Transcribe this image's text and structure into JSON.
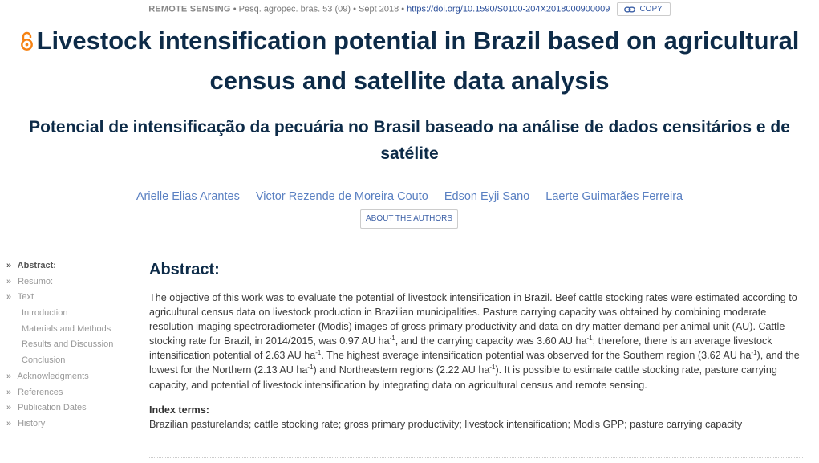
{
  "meta": {
    "section": "REMOTE SENSING",
    "journal": "Pesq. agropec. bras. 53 (09)",
    "date": "Sept 2018",
    "doi": "https://doi.org/10.1590/S0100-204X2018000900009",
    "copy_label": "COPY",
    "copy_icon": "link-icon",
    "link_color": "#2a4e9a"
  },
  "title": {
    "text": "Livestock intensification potential in Brazil based on agricultural census and satellite data analysis",
    "icon": "open-access-icon",
    "color": "#0d2b48",
    "oa_color": "#f68212"
  },
  "subtitle": "Potencial de intensificação da pecuária no Brasil baseado na análise de dados censitários e de satélite",
  "authors": [
    "Arielle Elias Arantes",
    "Victor Rezende de Moreira Couto",
    "Edson Eyji Sano",
    "Laerte Guimarães Ferreira"
  ],
  "about_authors_label": "ABOUT THE AUTHORS",
  "toc": [
    {
      "label": "Abstract:",
      "level": 1,
      "active": true
    },
    {
      "label": "Resumo:",
      "level": 1,
      "active": false
    },
    {
      "label": "Text",
      "level": 1,
      "active": false
    },
    {
      "label": "Introduction",
      "level": 2,
      "active": false
    },
    {
      "label": "Materials and Methods",
      "level": 2,
      "active": false
    },
    {
      "label": "Results and Discussion",
      "level": 2,
      "active": false
    },
    {
      "label": "Conclusion",
      "level": 2,
      "active": false
    },
    {
      "label": "Acknowledgments",
      "level": 1,
      "active": false
    },
    {
      "label": "References",
      "level": 1,
      "active": false
    },
    {
      "label": "Publication Dates",
      "level": 1,
      "active": false
    },
    {
      "label": "History",
      "level": 1,
      "active": false
    }
  ],
  "toc_marker": "»",
  "abstract": {
    "heading": "Abstract:",
    "p1": "The objective of this work was to evaluate the potential of livestock intensification in Brazil. Beef cattle stocking rates were estimated according to agricultural census data on livestock production in Brazilian municipalities. Pasture carrying capacity was obtained by combining moderate resolution imaging spectroradiometer (Modis) images of gross primary productivity and data on dry matter demand per animal unit (AU). Cattle stocking rate for Brazil, in 2014/2015, was 0.97 AU ha",
    "sup": "-1",
    "p2": ", and the carrying capacity was 3.60 AU ha",
    "p3": "; therefore, there is an average livestock intensification potential of 2.63 AU ha",
    "p4": ". The highest average intensification potential was observed for the Southern region (3.62 AU ha",
    "p5": "), and the lowest for the Northern (2.13 AU ha",
    "p6": ") and Northeastern regions (2.22 AU ha",
    "p7": "). It is possible to estimate cattle stocking rate, pasture carrying capacity, and potential of livestock intensification by integrating data on agricultural census and remote sensing."
  },
  "index_terms": {
    "heading": "Index terms:",
    "text": "Brazilian pasturelands; cattle stocking rate; gross primary productivity; livestock intensification; Modis GPP; pasture carrying capacity"
  }
}
